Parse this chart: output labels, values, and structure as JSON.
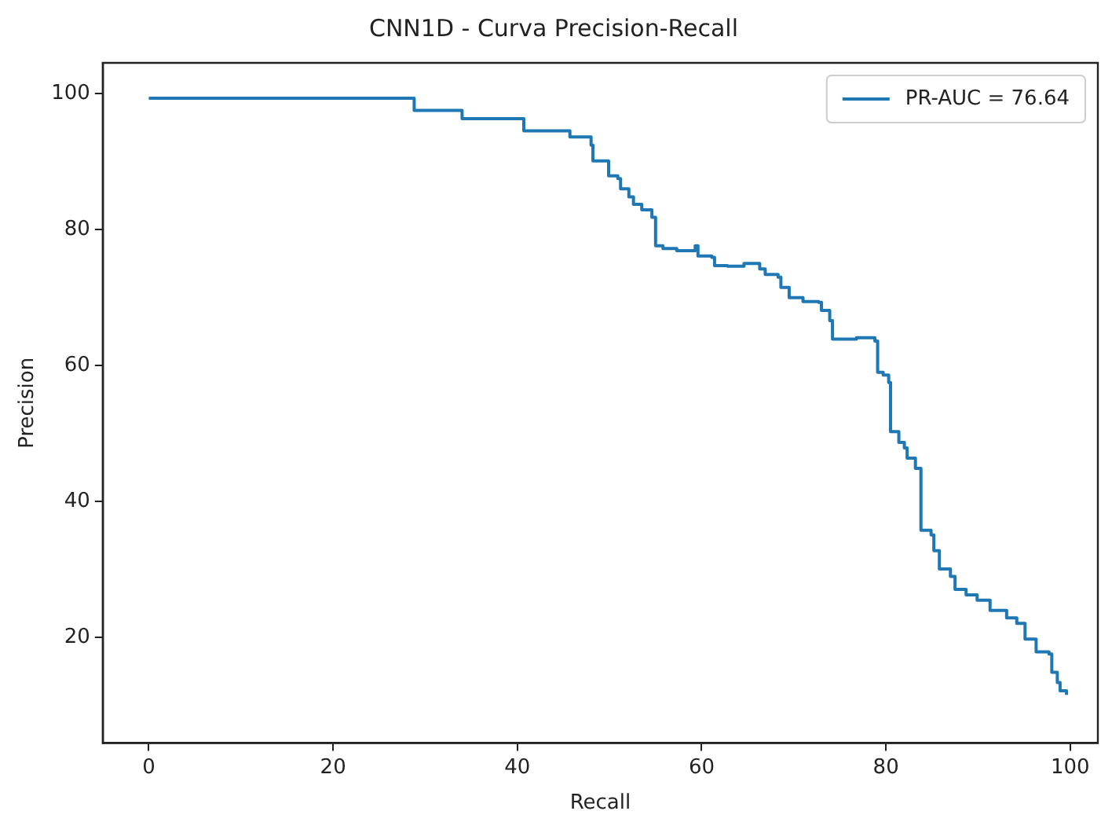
{
  "chart_data": {
    "type": "step",
    "title": "CNN1D - Curva Precision-Recall",
    "xlabel": "Recall",
    "ylabel": "Precision",
    "x": [
      0,
      28.8,
      28.8,
      34.0,
      34.0,
      39.8,
      40.7,
      45.7,
      45.7,
      47.6,
      48.0,
      48.2,
      49.7,
      49.9,
      50.9,
      51.2,
      52.1,
      52.6,
      53.5,
      54.6,
      55.0,
      55.0,
      55.8,
      57.3,
      59.3,
      59.6,
      61.1,
      61.4,
      62.8,
      64.6,
      66.3,
      66.9,
      68.3,
      68.6,
      69.5,
      71.0,
      72.7,
      73.0,
      73.9,
      74.2,
      76.8,
      78.8,
      79.1,
      79.7,
      80.3,
      80.5,
      81.4,
      82.0,
      82.3,
      83.2,
      83.8,
      83.8,
      84.9,
      85.2,
      85.8,
      87.0,
      87.5,
      88.7,
      89.9,
      91.3,
      93.1,
      94.2,
      95.1,
      96.3,
      97.7,
      98.0,
      98.6,
      98.9,
      99.6
    ],
    "series": [
      {
        "name": "PR-AUC = 76.64",
        "color": "#1f77b4",
        "values": [
          99.3,
          99.3,
          97.5,
          97.5,
          96.3,
          96.3,
          94.5,
          94.5,
          93.6,
          93.6,
          92.4,
          90.1,
          90.1,
          87.9,
          87.5,
          86.0,
          84.8,
          83.7,
          82.9,
          81.8,
          81.4,
          77.6,
          77.2,
          76.9,
          77.6,
          76.1,
          75.9,
          74.7,
          74.6,
          75.0,
          74.2,
          73.4,
          73.0,
          71.5,
          70.0,
          69.4,
          69.3,
          68.1,
          66.6,
          63.9,
          64.1,
          63.6,
          59.0,
          58.6,
          57.5,
          50.3,
          48.7,
          47.9,
          46.4,
          44.9,
          44.5,
          35.8,
          35.1,
          32.8,
          30.1,
          29.0,
          27.1,
          26.3,
          25.5,
          24.0,
          22.9,
          22.1,
          19.8,
          17.9,
          17.6,
          14.9,
          13.4,
          12.2,
          11.6
        ]
      }
    ],
    "xlim": [
      -5,
      103
    ],
    "xticks": [
      0,
      20,
      40,
      60,
      80,
      100
    ],
    "ylim": [
      4.5,
      104.5
    ],
    "yticks": [
      20,
      40,
      60,
      80,
      100
    ],
    "grid": false,
    "legend": "top right",
    "marker": "none",
    "line_style": "solid"
  }
}
